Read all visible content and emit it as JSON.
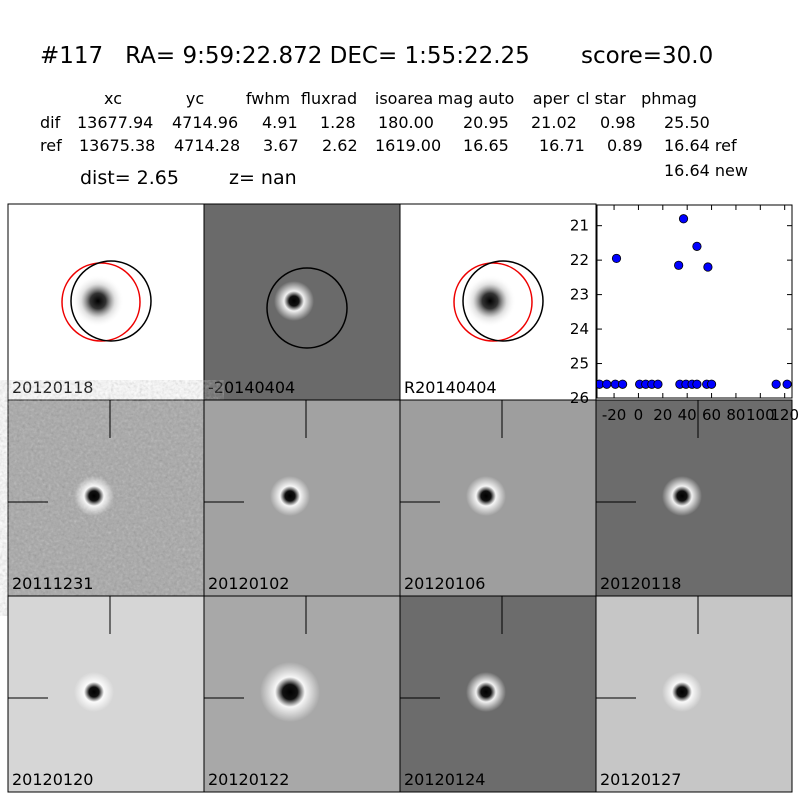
{
  "header": {
    "title": "#117   RA= 9:59:22.872 DEC= 1:55:22.25       score=30.0"
  },
  "table": {
    "columns": [
      "xc",
      "yc",
      "fwhm",
      "fluxrad",
      "isoarea",
      "mag auto",
      "aper",
      "cl star",
      "phmag"
    ],
    "rows": [
      [
        "dif",
        "13677.94",
        "4714.96",
        "4.91",
        "1.28",
        "180.00",
        "20.95",
        "21.02",
        "0.98",
        "25.50"
      ],
      [
        "ref",
        "13675.38",
        "4714.28",
        "3.67",
        "2.62",
        "1619.00",
        "16.65",
        "16.71",
        "0.89",
        "16.64 ref"
      ]
    ],
    "extra": "16.64 new"
  },
  "summary": {
    "dist": "dist=  2.65",
    "z": "z=   nan"
  },
  "panels": [
    {
      "label": "20120118"
    },
    {
      "label": "-20140404"
    },
    {
      "label": "R20140404"
    },
    {
      "label": "20111231"
    },
    {
      "label": "20120102"
    },
    {
      "label": "20120106"
    },
    {
      "label": "20120118",
      "label_color": "#ff0000"
    },
    {
      "label": "20120120"
    },
    {
      "label": "20120122"
    },
    {
      "label": "20120124"
    },
    {
      "label": "20120127"
    }
  ],
  "chart_data": {
    "type": "scatter",
    "x": [
      -32,
      -26,
      -19,
      -13,
      1,
      6,
      11,
      16,
      34,
      39,
      44,
      48,
      56,
      60,
      113,
      122,
      -18,
      37,
      33,
      48,
      57
    ],
    "series": [
      {
        "color": "#0000ff",
        "values": [
          25.6,
          25.6,
          25.6,
          25.6,
          25.6,
          25.6,
          25.6,
          25.6,
          25.6,
          25.6,
          25.6,
          25.6,
          25.6,
          25.6,
          25.6,
          25.6,
          21.95,
          20.8,
          22.15,
          21.6,
          22.2
        ],
        "errors": [
          0,
          0,
          0,
          0,
          0,
          0,
          0,
          0,
          0,
          0,
          0,
          0,
          0,
          0,
          0,
          0,
          0.05,
          0.05,
          0.12,
          0.07,
          0.12
        ]
      }
    ],
    "xlim": [
      -34,
      126
    ],
    "xticks": [
      -20,
      0,
      20,
      40,
      60,
      80,
      100,
      120
    ],
    "ylim": [
      20.4,
      26
    ],
    "y_inverted": true,
    "yticks": [
      21,
      22,
      23,
      24,
      25,
      26
    ]
  }
}
